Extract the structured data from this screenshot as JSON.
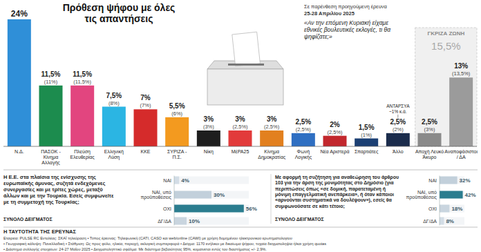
{
  "header": {
    "note": "Σε παρένθεση προηγούμενη έρευνα",
    "previous_dates": "25-28 Απριλίου 2025"
  },
  "chart_data": [
    {
      "type": "bar",
      "title": "Πρόθεση ψήφου με όλες τις απαντήσεις",
      "subtitle": "«Αν την επόμενη Κυριακή είχαμε εθνικές βουλευτικές εκλογές, τι θα ψηφίζατε;»",
      "categories": [
        "Ν.Δ.",
        "ΠΑΣΟΚ - Κίνημα Αλλαγής",
        "Πλεύση Ελευθερίας",
        "Ελληνική Λύση",
        "ΚΚΕ",
        "ΣΥΡΙΖΑ - Π.Σ.",
        "Νίκη",
        "ΜέΡΑ25",
        "Κίνημα Δημοκρατίας",
        "Φωνή Λογικής",
        "Νέα Αριστερά",
        "Σπαρτιάτες",
        "Άλλο",
        "Αποχή Λευκό Άκυρο",
        "Αναποφάσιστοι / ΔΑ"
      ],
      "values": [
        24,
        11.5,
        11.5,
        7.5,
        7,
        5.5,
        3,
        3,
        3,
        2.5,
        2,
        1.5,
        2.5,
        2.5,
        13
      ],
      "value_labels": [
        "24%",
        "11,5%",
        "11,5%",
        "7,5%",
        "7%",
        "5,5%",
        "3%",
        "3%",
        "3%",
        "2,5%",
        "2%",
        "1,5%",
        "2,5%",
        "2,5%",
        "13%"
      ],
      "previous_labels": [
        null,
        "(11%)",
        "(11,5%)",
        "(8%)",
        "(7%)",
        "(6%)",
        "(3%)",
        "(2,5%)",
        "(2,5%)",
        "(2,5%)",
        "(2,5%)",
        "(1%)",
        "(2%)",
        "(3%)",
        "(13,5%)"
      ],
      "colors": [
        "#2f8fd8",
        "#1c8c4e",
        "#e2457f",
        "#2bb5e3",
        "#d52b2b",
        "#f39a1f",
        "#1e1e1e",
        "#e23b3b",
        "#e2801f",
        "#2f6fc2",
        "#c2272d",
        "#1b3f73",
        "#1b2c4c",
        "#8a8a8a",
        "#9b9b9b"
      ],
      "ylim": [
        0,
        24
      ],
      "grid": false,
      "tick_labels": "x",
      "data_labels": true,
      "annotations": [
        {
          "text": "ΑΝΤΑΡΣΥΑ ~1% κ.ά.",
          "category": "Άλλο"
        }
      ],
      "gray_zone": {
        "label": "ΓΚΡΙΖΑ ΖΩΝΗ",
        "value_label": "15,5%",
        "categories": [
          "Αποχή Λευκό Άκυρο",
          "Αναποφάσιστοι / ΔΑ"
        ]
      }
    },
    {
      "type": "bar",
      "orientation": "horizontal",
      "title": "Η Ε.Ε. στα πλαίσια της ενίσχυσης της ευρωπαϊκής άμυνας, συζητά ενδεχόμενες συνεργασίες και με τρίτες χώρες, μεταξύ άλλων και με την Τουρκία. Εσείς συμφωνείτε με τη συμμετοχή της Τουρκίας;",
      "subtitle": "ΣΥΝΟΛΟ ΔΕΙΓΜΑΤΟΣ",
      "categories": [
        "ΝΑΙ",
        "ΝΑΙ, υπό προϋποθέσεις",
        "ΟΧΙ",
        "ΔΓ/ΔΑ"
      ],
      "values": [
        4,
        30,
        56,
        10
      ],
      "value_labels": [
        "4%",
        "30%",
        "56%",
        "10%"
      ],
      "colors": [
        "#d3dde6",
        "#c2d0db",
        "#2b7d8f",
        "#c9d5df"
      ],
      "xlim": [
        0,
        60
      ],
      "grid": false,
      "tick_labels": "y",
      "data_labels": true
    },
    {
      "type": "bar",
      "orientation": "horizontal",
      "title": "Με αφορμή τη συζήτηση για αναθεώρηση του άρθρου 103 για την άρση της μονιμότητας στο Δημόσιο (για περιπτώσεις όπως «σε δομική, παρατεταμένη ή μόνιμη επαγγελματική ανεπάρκεια», ή όταν κάποιοι «αρνούνται συστηματικά να δουλέψουν»), εσείς θα συμφωνούσατε σε κάτι τέτοιο;",
      "subtitle": "ΣΥΝΟΛΟ ΔΕΙΓΜΑΤΟΣ",
      "categories": [
        "ΝΑΙ",
        "ΝΑΙ, υπό προϋποθέσεις",
        "ΟΧΙ",
        "ΔΓ/ΔΑ"
      ],
      "values": [
        32,
        42,
        18,
        8
      ],
      "value_labels": [
        "32%",
        "42%",
        "18%",
        "8%"
      ],
      "colors": [
        "#c2d0db",
        "#2b7d8f",
        "#c9d5df",
        "#d3dde6"
      ],
      "xlim": [
        0,
        45
      ],
      "grid": false,
      "tick_labels": "y",
      "data_labels": true
    }
  ],
  "footer": {
    "title": "Η ΤΑΥΤΟΤΗΤΑ ΤΗΣ ΕΡΕΥΝΑΣ",
    "lines": [
      "Εταιρεία: PULSE RC Εντολέας: ΣΚΑΪ τηλεόραση • Τύπος έρευνας: Τηλεφωνική (CATI, CASO και web/online (CAWI) με χρήση δομημένου ηλεκτρονικού ερωτηματολογίου",
      "• Γεωγραφική κάλυψη: Πανελλαδική • Στάθμιση: Ως προς φύλο, ηλικία, περιοχή, εκλογική συμπεριφορά • Δείγμα: 1170 ενήλικοι με δικαίωμα ψήφου, τυχαία δειγματοληψία ή/και χρήση quotas",
      "• Διάστημα συλλογής στοιχείων: 24-27 Μαΐου 2025 • Δειγματοληπτικό σφάλμα: Με διάστημα βεβαιότητας 95%, κυμαίνεται εντός του διαστήματος +/- 2,9%."
    ]
  }
}
